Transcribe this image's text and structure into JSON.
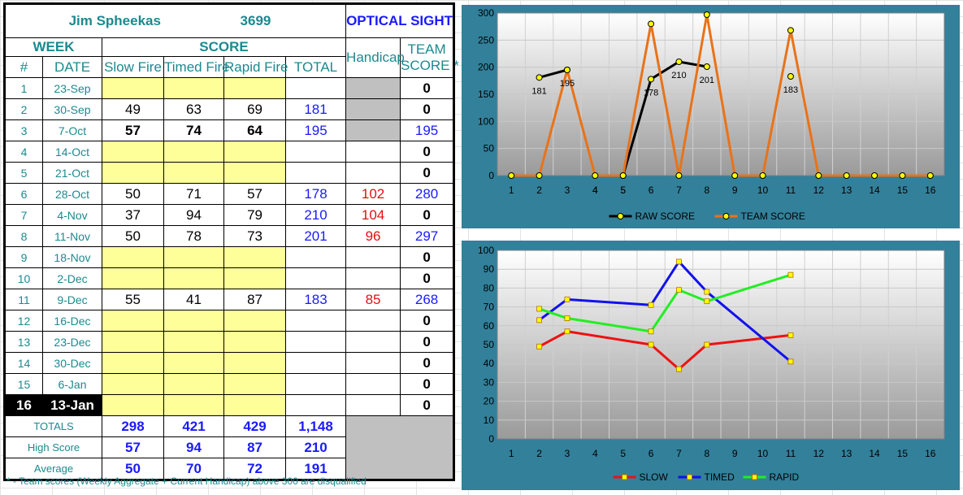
{
  "header": {
    "name": "Jim Spheekas",
    "number": "3699",
    "category": "OPTICAL SIGHT"
  },
  "columns": {
    "week": "WEEK",
    "score": "SCORE",
    "handicap": "Handicap",
    "team_line1": "TEAM",
    "team_line2": "SCORE *",
    "num": "#",
    "date": "DATE",
    "slow": "Slow Fire",
    "timed": "Timed Fire",
    "rapid": "Rapid Fire",
    "total": "TOTAL"
  },
  "rows": [
    {
      "n": "1",
      "date": "23-Sep",
      "slow": "",
      "timed": "",
      "rapid": "",
      "total": "",
      "handicap": "",
      "team": "0"
    },
    {
      "n": "2",
      "date": "30-Sep",
      "slow": "49",
      "timed": "63",
      "rapid": "69",
      "total": "181",
      "handicap": "",
      "team": "0"
    },
    {
      "n": "3",
      "date": "7-Oct",
      "slow": "57",
      "timed": "74",
      "rapid": "64",
      "total": "195",
      "handicap": "",
      "team": "195"
    },
    {
      "n": "4",
      "date": "14-Oct",
      "slow": "",
      "timed": "",
      "rapid": "",
      "total": "",
      "handicap": "",
      "team": "0"
    },
    {
      "n": "5",
      "date": "21-Oct",
      "slow": "",
      "timed": "",
      "rapid": "",
      "total": "",
      "handicap": "",
      "team": "0"
    },
    {
      "n": "6",
      "date": "28-Oct",
      "slow": "50",
      "timed": "71",
      "rapid": "57",
      "total": "178",
      "handicap": "102",
      "team": "280"
    },
    {
      "n": "7",
      "date": "4-Nov",
      "slow": "37",
      "timed": "94",
      "rapid": "79",
      "total": "210",
      "handicap": "104",
      "team": "0"
    },
    {
      "n": "8",
      "date": "11-Nov",
      "slow": "50",
      "timed": "78",
      "rapid": "73",
      "total": "201",
      "handicap": "96",
      "team": "297"
    },
    {
      "n": "9",
      "date": "18-Nov",
      "slow": "",
      "timed": "",
      "rapid": "",
      "total": "",
      "handicap": "",
      "team": "0"
    },
    {
      "n": "10",
      "date": "2-Dec",
      "slow": "",
      "timed": "",
      "rapid": "",
      "total": "",
      "handicap": "",
      "team": "0"
    },
    {
      "n": "11",
      "date": "9-Dec",
      "slow": "55",
      "timed": "41",
      "rapid": "87",
      "total": "183",
      "handicap": "85",
      "team": "268"
    },
    {
      "n": "12",
      "date": "16-Dec",
      "slow": "",
      "timed": "",
      "rapid": "",
      "total": "",
      "handicap": "",
      "team": "0"
    },
    {
      "n": "13",
      "date": "23-Dec",
      "slow": "",
      "timed": "",
      "rapid": "",
      "total": "",
      "handicap": "",
      "team": "0"
    },
    {
      "n": "14",
      "date": "30-Dec",
      "slow": "",
      "timed": "",
      "rapid": "",
      "total": "",
      "handicap": "",
      "team": "0"
    },
    {
      "n": "15",
      "date": "6-Jan",
      "slow": "",
      "timed": "",
      "rapid": "",
      "total": "",
      "handicap": "",
      "team": "0"
    },
    {
      "n": "16",
      "date": "13-Jan",
      "slow": "",
      "timed": "",
      "rapid": "",
      "total": "",
      "handicap": "",
      "team": "0"
    }
  ],
  "summary": {
    "totals": {
      "label": "TOTALS",
      "slow": "298",
      "timed": "421",
      "rapid": "429",
      "total": "1,148"
    },
    "high": {
      "label": "High Score",
      "slow": "57",
      "timed": "94",
      "rapid": "87",
      "total": "210"
    },
    "average": {
      "label": "Average",
      "slow": "50",
      "timed": "70",
      "rapid": "72",
      "total": "191"
    }
  },
  "footnote": "* - Team scores (Weekly Aggregate + Current Handicap) above 300 are disqualified",
  "colors": {
    "teal": "#1b8a8f",
    "blue": "#1a1aff",
    "red": "#e01010",
    "yellow_cell": "#ffff99",
    "gray_cell": "#c0c0c0",
    "chart_frame": "#33809a"
  },
  "chart_data": [
    {
      "type": "line",
      "categories": [
        "1",
        "2",
        "3",
        "4",
        "5",
        "6",
        "7",
        "8",
        "9",
        "10",
        "11",
        "12",
        "13",
        "14",
        "15",
        "16"
      ],
      "ylim": [
        0,
        300
      ],
      "yticks": [
        "0",
        "50",
        "100",
        "150",
        "200",
        "250",
        "300"
      ],
      "grid": true,
      "legend": "bottom",
      "series": [
        {
          "name": "RAW SCORE",
          "color": "#000000",
          "marker": "#ffff00",
          "points": [
            [
              2,
              181
            ],
            [
              3,
              195
            ],
            [
              5,
              0
            ],
            [
              6,
              178
            ],
            [
              7,
              210
            ],
            [
              8,
              201
            ],
            [
              11,
              183
            ]
          ],
          "segments": [
            [
              [
                2,
                181
              ],
              [
                3,
                195
              ]
            ],
            [
              [
                5,
                0
              ],
              [
                6,
                178
              ],
              [
                7,
                210
              ],
              [
                8,
                201
              ]
            ]
          ]
        },
        {
          "name": "TEAM SCORE",
          "color": "#e8731a",
          "marker": "#ffff00",
          "values": [
            0,
            0,
            195,
            0,
            0,
            280,
            0,
            297,
            0,
            0,
            268,
            0,
            0,
            0,
            0,
            0
          ]
        }
      ],
      "labels": [
        {
          "x": 2,
          "y": 181,
          "text": "181"
        },
        {
          "x": 3,
          "y": 195,
          "text": "195"
        },
        {
          "x": 6,
          "y": 178,
          "text": "178"
        },
        {
          "x": 7,
          "y": 210,
          "text": "210"
        },
        {
          "x": 8,
          "y": 201,
          "text": "201"
        },
        {
          "x": 11,
          "y": 183,
          "text": "183"
        }
      ],
      "extra_xlabels": [
        {
          "x": 4,
          "text": "4"
        },
        {
          "x": 5,
          "text": "5"
        }
      ]
    },
    {
      "type": "line",
      "categories": [
        "1",
        "2",
        "3",
        "4",
        "5",
        "6",
        "7",
        "8",
        "9",
        "10",
        "11",
        "12",
        "13",
        "14",
        "15",
        "16"
      ],
      "ylim": [
        0,
        100
      ],
      "yticks": [
        "0",
        "10",
        "20",
        "30",
        "40",
        "50",
        "60",
        "70",
        "80",
        "90",
        "100"
      ],
      "grid": true,
      "legend": "bottom",
      "series": [
        {
          "name": "SLOW",
          "color": "#ee1111",
          "marker": "#ffff00",
          "points": [
            [
              2,
              49
            ],
            [
              3,
              57
            ],
            [
              6,
              50
            ],
            [
              7,
              37
            ],
            [
              8,
              50
            ],
            [
              11,
              55
            ]
          ]
        },
        {
          "name": "TIMED",
          "color": "#1111ee",
          "marker": "#ffff00",
          "points": [
            [
              2,
              63
            ],
            [
              3,
              74
            ],
            [
              6,
              71
            ],
            [
              7,
              94
            ],
            [
              8,
              78
            ],
            [
              11,
              41
            ]
          ]
        },
        {
          "name": "RAPID",
          "color": "#22ee22",
          "marker": "#ffff00",
          "points": [
            [
              2,
              69
            ],
            [
              3,
              64
            ],
            [
              6,
              57
            ],
            [
              7,
              79
            ],
            [
              8,
              73
            ],
            [
              11,
              87
            ]
          ]
        }
      ]
    }
  ]
}
